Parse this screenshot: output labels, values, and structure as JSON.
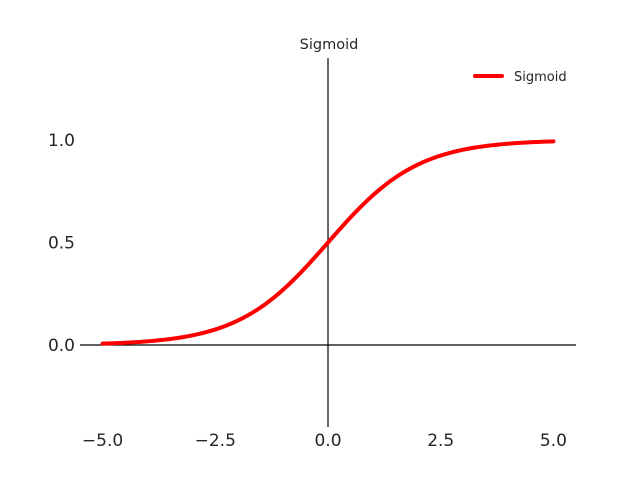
{
  "chart_data": {
    "type": "line",
    "title": "Sigmoid",
    "xlabel": "",
    "ylabel": "",
    "xlim": [
      -5.5,
      5.5
    ],
    "ylim": [
      -0.4,
      1.4
    ],
    "xticks": [
      -5.0,
      -2.5,
      0.0,
      2.5,
      5.0
    ],
    "xtick_labels": [
      "−5.0",
      "−2.5",
      "0.0",
      "2.5",
      "5.0"
    ],
    "yticks": [
      0.0,
      0.5,
      1.0
    ],
    "ytick_labels": [
      "0.0",
      "0.5",
      "1.0"
    ],
    "grid": false,
    "legend": {
      "position": "top-right",
      "entries": [
        "Sigmoid"
      ]
    },
    "series": [
      {
        "name": "Sigmoid",
        "color": "#ff0000",
        "function": "1/(1+exp(-x))",
        "x": [
          -5.0,
          -4.5,
          -4.0,
          -3.5,
          -3.0,
          -2.5,
          -2.0,
          -1.5,
          -1.0,
          -0.5,
          0.0,
          0.5,
          1.0,
          1.5,
          2.0,
          2.5,
          3.0,
          3.5,
          4.0,
          4.5,
          5.0
        ],
        "y": [
          0.0067,
          0.011,
          0.018,
          0.0293,
          0.0474,
          0.0759,
          0.1192,
          0.1824,
          0.2689,
          0.3775,
          0.5,
          0.6225,
          0.7311,
          0.8176,
          0.8808,
          0.9241,
          0.9526,
          0.9707,
          0.982,
          0.989,
          0.9933
        ]
      }
    ],
    "axes_spines": "centered at origin (x=0, y=0)"
  }
}
